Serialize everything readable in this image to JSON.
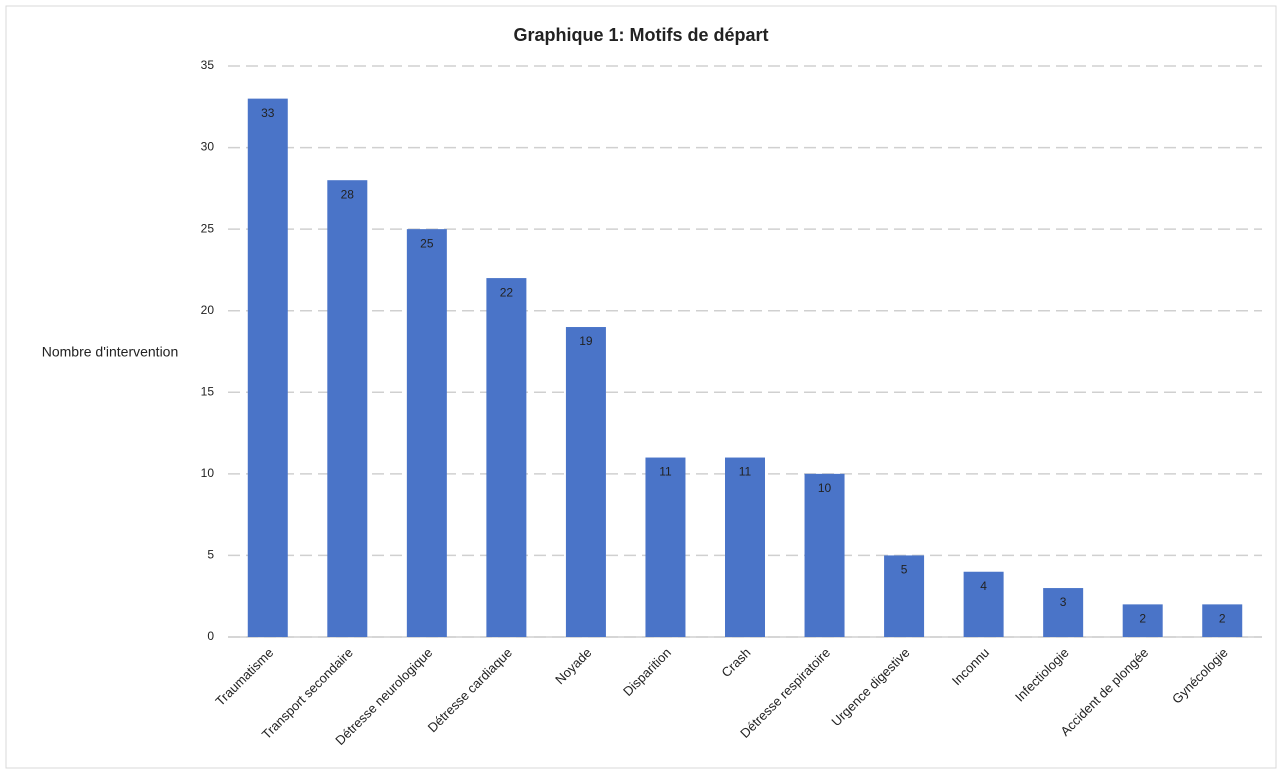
{
  "chart_data": {
    "type": "bar",
    "title": "Graphique 1: Motifs de départ",
    "y_label": "Nombre d'intervention",
    "categories": [
      "Traumatisme",
      "Transport secondaire",
      "Détresse neurologique",
      "Détresse cardiaque",
      "Noyade",
      "Disparition",
      "Crash",
      "Détresse respiratoire",
      "Urgence digestive",
      "Inconnu",
      "Infectiologie",
      "Accident de plongée",
      "Gynécologie"
    ],
    "values": [
      33,
      28,
      25,
      22,
      19,
      11,
      11,
      10,
      5,
      4,
      3,
      2,
      2
    ],
    "color": "#4a74c8",
    "ylim": [
      0,
      35
    ],
    "yticks": [
      0,
      5,
      10,
      15,
      20,
      25,
      30,
      35
    ],
    "grid": true
  }
}
